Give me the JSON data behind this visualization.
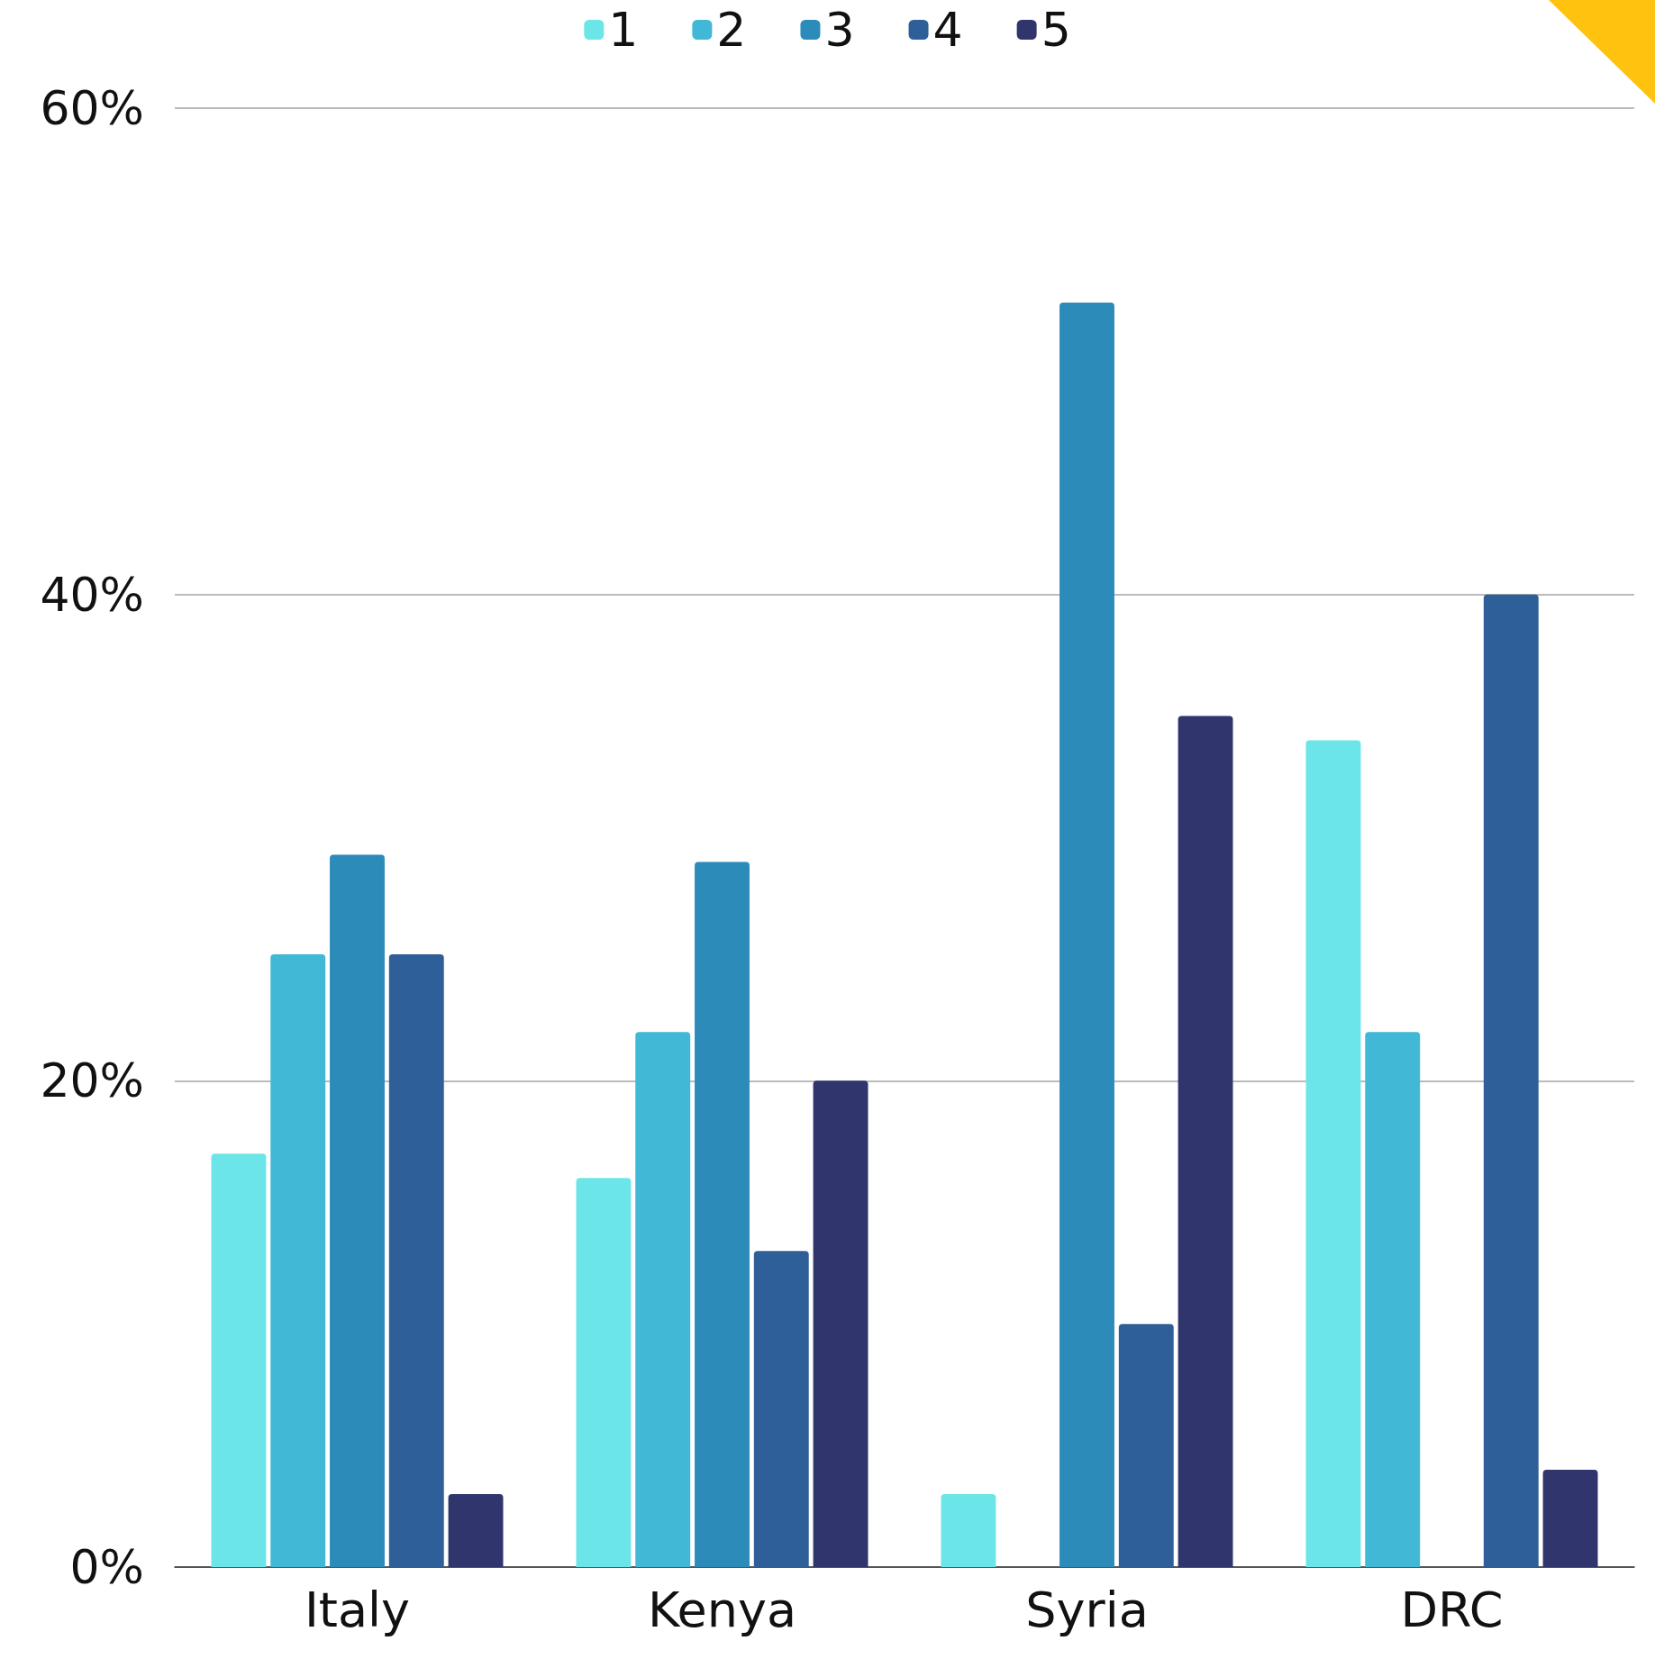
{
  "chart_data": {
    "type": "bar",
    "categories": [
      "Italy",
      "Kenya",
      "Syria",
      "DRC"
    ],
    "series": [
      {
        "name": "1",
        "color": "#6ce5e8",
        "values": [
          17,
          16,
          3,
          34
        ]
      },
      {
        "name": "2",
        "color": "#41b8d5",
        "values": [
          25.2,
          22,
          0,
          22
        ]
      },
      {
        "name": "3",
        "color": "#2d8bba",
        "values": [
          29.3,
          29,
          52,
          0
        ]
      },
      {
        "name": "4",
        "color": "#2f5f98",
        "values": [
          25.2,
          13,
          10,
          40
        ]
      },
      {
        "name": "5",
        "color": "#31356e",
        "values": [
          3,
          20,
          35,
          4
        ]
      }
    ],
    "ylim": [
      0,
      60
    ],
    "yticks": [
      {
        "value": 0,
        "label": "0%"
      },
      {
        "value": 20,
        "label": "20%"
      },
      {
        "value": 40,
        "label": "40%"
      },
      {
        "value": 60,
        "label": "60%"
      }
    ],
    "grid": "y",
    "legend": "top"
  }
}
